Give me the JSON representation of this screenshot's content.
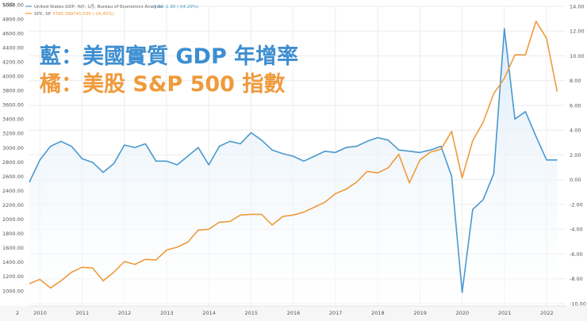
{
  "legend": {
    "gdp_line": {
      "name": "United States GDP, YoY, 1月, Bureau of Economics Analysis",
      "value": "1.60",
      "change": "-1.90 (-54.29%)"
    },
    "spx_line": {
      "name": "SPX, SP",
      "value": "3785.390",
      "change": "-745.030 (-16.45%)"
    }
  },
  "overlay": {
    "line1": "藍：美國實質 GDP 年增率",
    "line2": "橘：美股 S&P 500 指數"
  },
  "corner_label": "2",
  "chart_data": {
    "type": "line",
    "colors": {
      "gdp": "#4a98cd",
      "gdp_fill": "#dcebf8",
      "spx": "#ef9a3b",
      "grid": "#ececec"
    },
    "x_axis": {
      "range": [
        2009.75,
        2022.45
      ],
      "ticks": [
        2010,
        2011,
        2012,
        2013,
        2014,
        2015,
        2016,
        2017,
        2018,
        2019,
        2020,
        2021,
        2022
      ],
      "tick_labels": [
        "2010",
        "2011",
        "2012",
        "2013",
        "2014",
        "2015",
        "2016",
        "2017",
        "2018",
        "2019",
        "2020",
        "2021",
        "2022"
      ]
    },
    "left_axis": {
      "label": "USD",
      "range": [
        800,
        5000
      ],
      "ticks": [
        1000,
        1200,
        1400,
        1600,
        1800,
        2000,
        2200,
        2400,
        2600,
        2800,
        3000,
        3200,
        3400,
        3600,
        3800,
        4000,
        4200,
        4400,
        4600,
        4800,
        5000
      ],
      "tick_labels": [
        "1000.00",
        "1200.00",
        "1400.00",
        "1600.00",
        "1800.00",
        "2000.00",
        "2200.00",
        "2400.00",
        "2600.00",
        "2800.00",
        "3000.00",
        "3200.00",
        "3400.00",
        "3600.00",
        "3800.00",
        "4000.00",
        "4200.00",
        "4400.00",
        "4600.00",
        "4800.00",
        "5000.00"
      ]
    },
    "right_axis": {
      "range": [
        -10,
        14
      ],
      "ticks": [
        -10,
        -8,
        -6,
        -4,
        -2,
        0,
        2,
        4,
        6,
        8,
        10,
        12,
        14
      ],
      "tick_labels": [
        "-10.00",
        "-8.00",
        "-6.00",
        "-4.00",
        "-2.00",
        "0.00",
        "2.00",
        "4.00",
        "6.00",
        "8.00",
        "10.00",
        "12.00",
        "14.00"
      ]
    },
    "series": [
      {
        "name": "United States GDP YoY",
        "axis": "right",
        "x": [
          2009.75,
          2010.0,
          2010.25,
          2010.5,
          2010.75,
          2011.0,
          2011.25,
          2011.5,
          2011.75,
          2012.0,
          2012.25,
          2012.5,
          2012.75,
          2013.0,
          2013.25,
          2013.5,
          2013.75,
          2014.0,
          2014.25,
          2014.5,
          2014.75,
          2015.0,
          2015.25,
          2015.5,
          2015.75,
          2016.0,
          2016.25,
          2016.5,
          2016.75,
          2017.0,
          2017.25,
          2017.5,
          2017.75,
          2018.0,
          2018.25,
          2018.5,
          2018.75,
          2019.0,
          2019.25,
          2019.5,
          2019.75,
          2020.0,
          2020.25,
          2020.5,
          2020.75,
          2021.0,
          2021.25,
          2021.5,
          2021.75,
          2022.0,
          2022.25
        ],
        "values": [
          -0.2,
          1.6,
          2.7,
          3.1,
          2.7,
          1.7,
          1.4,
          0.6,
          1.3,
          2.8,
          2.6,
          2.9,
          1.5,
          1.5,
          1.2,
          1.9,
          2.6,
          1.2,
          2.7,
          3.1,
          2.9,
          3.8,
          3.2,
          2.4,
          2.1,
          1.9,
          1.5,
          1.9,
          2.3,
          2.2,
          2.6,
          2.7,
          3.1,
          3.4,
          3.2,
          2.4,
          2.3,
          2.2,
          2.4,
          2.7,
          0.3,
          -9.1,
          -2.4,
          -1.6,
          0.5,
          12.2,
          4.9,
          5.5,
          3.5,
          1.6,
          1.6
        ]
      },
      {
        "name": "S&P 500",
        "axis": "left",
        "x": [
          2009.75,
          2010.0,
          2010.25,
          2010.5,
          2010.75,
          2011.0,
          2011.25,
          2011.5,
          2011.75,
          2012.0,
          2012.25,
          2012.5,
          2012.75,
          2013.0,
          2013.25,
          2013.5,
          2013.75,
          2014.0,
          2014.25,
          2014.5,
          2014.75,
          2015.0,
          2015.25,
          2015.5,
          2015.75,
          2016.0,
          2016.25,
          2016.5,
          2016.75,
          2017.0,
          2017.25,
          2017.5,
          2017.75,
          2018.0,
          2018.25,
          2018.5,
          2018.75,
          2019.0,
          2019.25,
          2019.5,
          2019.75,
          2020.0,
          2020.25,
          2020.5,
          2020.75,
          2021.0,
          2021.25,
          2021.5,
          2021.75,
          2022.0,
          2022.25
        ],
        "values": [
          1100,
          1160,
          1040,
          1140,
          1260,
          1330,
          1320,
          1140,
          1260,
          1410,
          1370,
          1440,
          1430,
          1570,
          1610,
          1680,
          1850,
          1860,
          1960,
          1970,
          2060,
          2070,
          2070,
          1920,
          2040,
          2060,
          2100,
          2170,
          2240,
          2360,
          2420,
          2520,
          2670,
          2650,
          2720,
          2910,
          2510,
          2830,
          2940,
          2980,
          3230,
          2580,
          3100,
          3360,
          3760,
          3970,
          4300,
          4300,
          4770,
          4530,
          3785
        ]
      }
    ]
  }
}
